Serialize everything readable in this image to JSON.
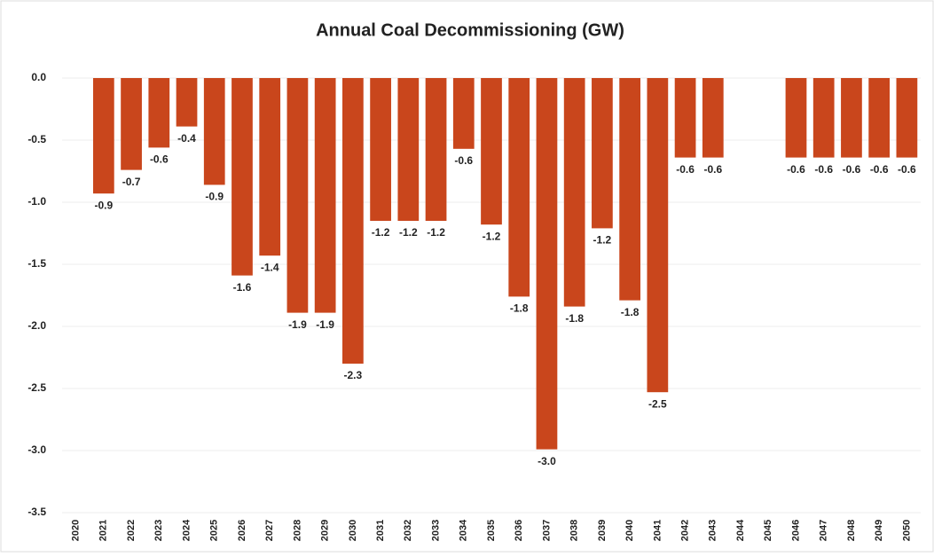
{
  "chart_data": {
    "type": "bar",
    "title": "Annual Coal Decommissioning (GW)",
    "categories": [
      "2020",
      "2021",
      "2022",
      "2023",
      "2024",
      "2025",
      "2026",
      "2027",
      "2028",
      "2029",
      "2030",
      "2031",
      "2032",
      "2033",
      "2034",
      "2035",
      "2036",
      "2037",
      "2038",
      "2039",
      "2040",
      "2041",
      "2042",
      "2043",
      "2044",
      "2045",
      "2046",
      "2047",
      "2048",
      "2049",
      "2050"
    ],
    "values": [
      null,
      -0.93,
      -0.74,
      -0.56,
      -0.39,
      -0.86,
      -1.59,
      -1.43,
      -1.89,
      -1.89,
      -2.3,
      -1.15,
      -1.15,
      -1.15,
      -0.57,
      -1.18,
      -1.76,
      -2.99,
      -1.84,
      -1.21,
      -1.79,
      -2.53,
      -0.64,
      -0.64,
      null,
      null,
      -0.64,
      -0.64,
      -0.64,
      -0.64,
      -0.64
    ],
    "value_labels": [
      null,
      "-0.9",
      "-0.7",
      "-0.6",
      "-0.4",
      "-0.9",
      "-1.6",
      "-1.4",
      "-1.9",
      "-1.9",
      "-2.3",
      "-1.2",
      "-1.2",
      "-1.2",
      "-0.6",
      "-1.2",
      "-1.8",
      "-3.0",
      "-1.8",
      "-1.2",
      "-1.8",
      "-2.5",
      "-0.6",
      "-0.6",
      null,
      null,
      "-0.6",
      "-0.6",
      "-0.6",
      "-0.6",
      "-0.6"
    ],
    "color": "#c9461c",
    "ylim": [
      -3.5,
      0
    ],
    "yticks": [
      {
        "value": 0,
        "label": "0.0"
      },
      -0.5,
      {
        "value": -1,
        "label": "-1.0"
      },
      -1.5,
      {
        "value": -2,
        "label": "-2.0"
      },
      -2.5,
      {
        "value": -3,
        "label": "-3.0"
      },
      -3.5
    ],
    "grid": true
  }
}
